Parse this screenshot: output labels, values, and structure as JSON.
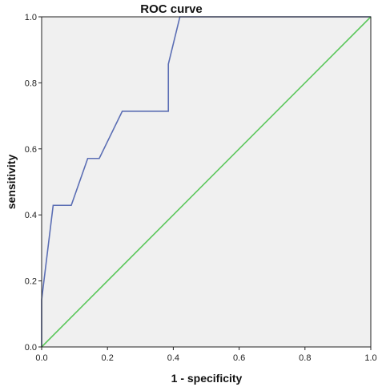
{
  "chart_data": {
    "type": "line",
    "title": "ROC curve",
    "xlabel": "1 - specificity",
    "ylabel": "sensitivity",
    "xlim": [
      0,
      1
    ],
    "ylim": [
      0,
      1
    ],
    "xticks": [
      "0.0",
      "0.2",
      "0.4",
      "0.6",
      "0.8",
      "1.0"
    ],
    "yticks": [
      "0.0",
      "0.2",
      "0.4",
      "0.6",
      "0.8",
      "1.0"
    ],
    "grid": false,
    "series": [
      {
        "color": "#5b6eb4",
        "points": [
          [
            0.0,
            0.0
          ],
          [
            0.0,
            0.143
          ],
          [
            0.035,
            0.429
          ],
          [
            0.09,
            0.429
          ],
          [
            0.14,
            0.571
          ],
          [
            0.175,
            0.571
          ],
          [
            0.245,
            0.714
          ],
          [
            0.385,
            0.714
          ],
          [
            0.385,
            0.857
          ],
          [
            0.42,
            1.0
          ],
          [
            1.0,
            1.0
          ]
        ]
      },
      {
        "color": "#5cc75c",
        "points": [
          [
            0.0,
            0.0
          ],
          [
            1.0,
            1.0
          ]
        ]
      }
    ],
    "colors": {
      "plot_background": "#f0f0f0",
      "frame": "#222222"
    }
  }
}
